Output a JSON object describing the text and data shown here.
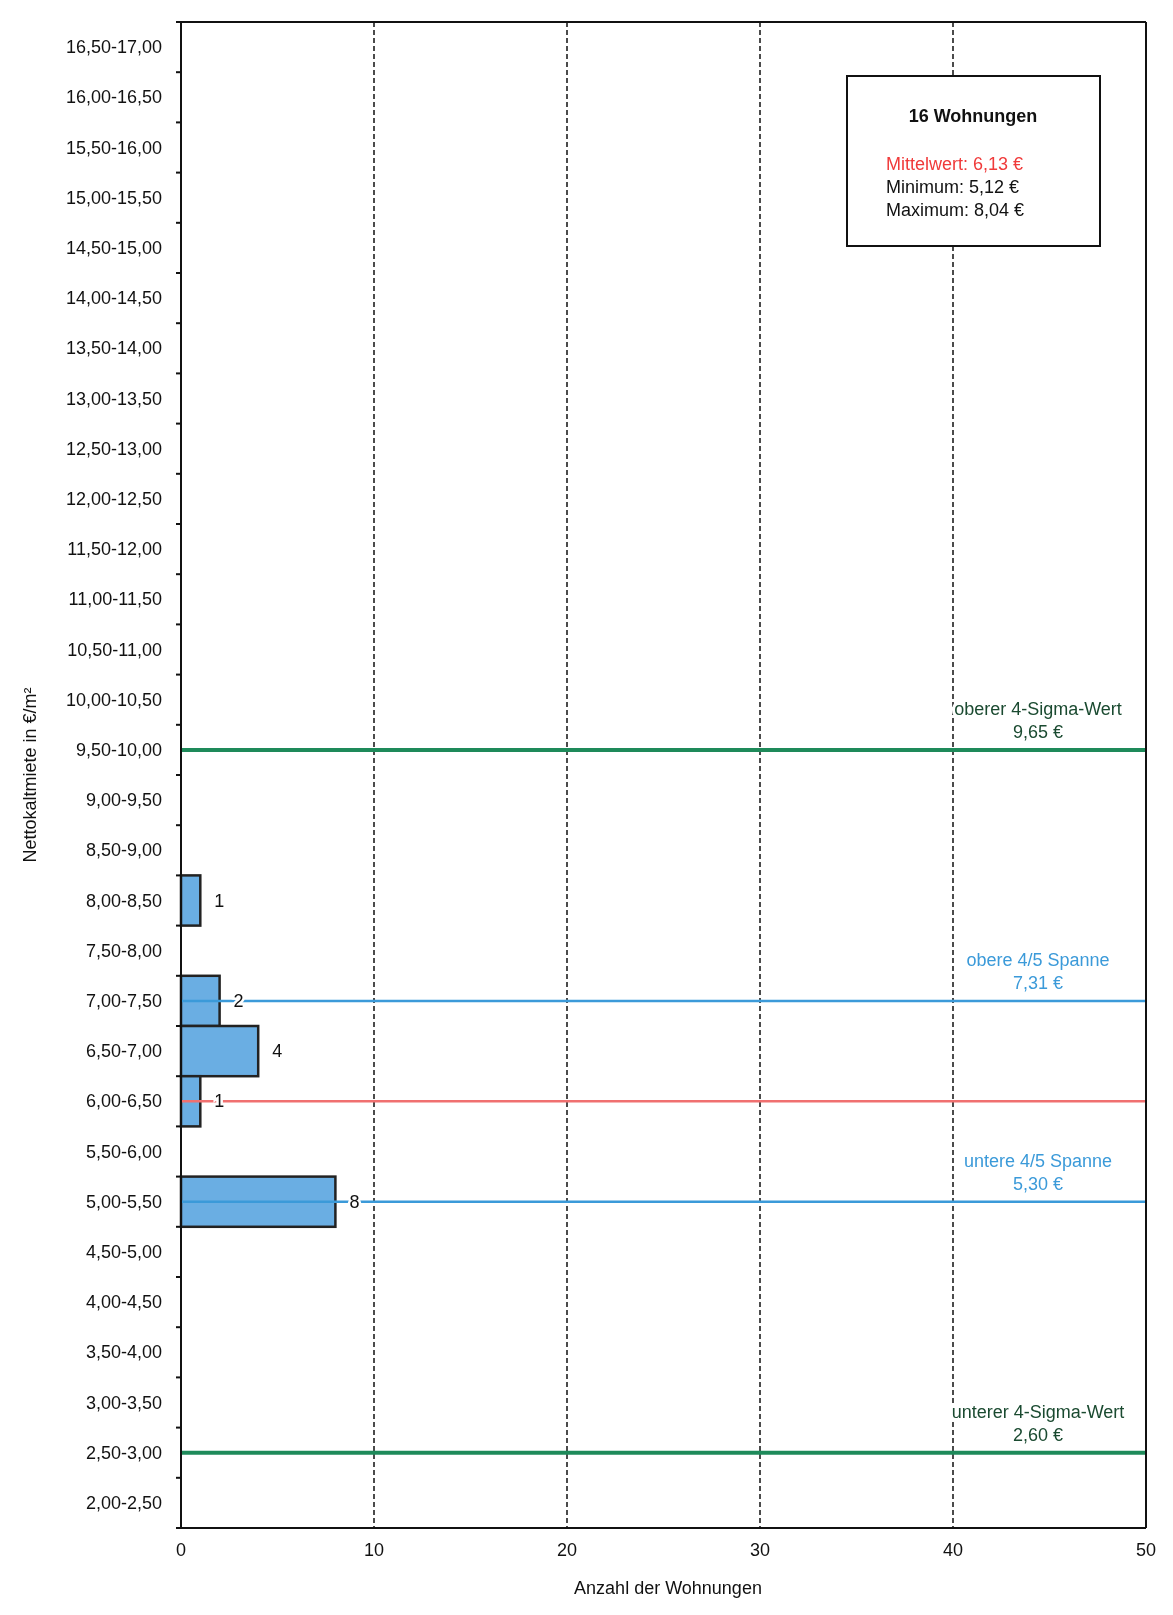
{
  "chart_data": {
    "type": "bar",
    "orientation": "horizontal",
    "xlabel": "Anzahl der Wohnungen",
    "ylabel": "Nettokaltmiete in €/m²",
    "categories": [
      "16,50-17,00",
      "16,00-16,50",
      "15,50-16,00",
      "15,00-15,50",
      "14,50-15,00",
      "14,00-14,50",
      "13,50-14,00",
      "13,00-13,50",
      "12,50-13,00",
      "12,00-12,50",
      "11,50-12,00",
      "11,00-11,50",
      "10,50-11,00",
      "10,00-10,50",
      "9,50-10,00",
      "9,00-9,50",
      "8,50-9,00",
      "8,00-8,50",
      "7,50-8,00",
      "7,00-7,50",
      "6,50-7,00",
      "6,00-6,50",
      "5,50-6,00",
      "5,00-5,50",
      "4,50-5,00",
      "4,00-4,50",
      "3,50-4,00",
      "3,00-3,50",
      "2,50-3,00",
      "2,00-2,50"
    ],
    "values": [
      0,
      0,
      0,
      0,
      0,
      0,
      0,
      0,
      0,
      0,
      0,
      0,
      0,
      0,
      0,
      0,
      0,
      1,
      0,
      2,
      4,
      1,
      0,
      8,
      0,
      0,
      0,
      0,
      0,
      0
    ],
    "value_labels": [
      null,
      null,
      null,
      null,
      null,
      null,
      null,
      null,
      null,
      null,
      null,
      null,
      null,
      null,
      null,
      null,
      null,
      "1",
      null,
      "2",
      "4",
      "1",
      null,
      "8",
      null,
      null,
      null,
      null,
      null,
      null
    ],
    "color": "#6aaee3",
    "xlim": [
      0,
      50
    ],
    "xticks": [
      0,
      10,
      20,
      30,
      40,
      50
    ],
    "grid": "x",
    "line_style": "dashed",
    "ref_lines": [
      {
        "axis": "y",
        "value": "9,50-10,00",
        "label": "oberer 4-Sigma-Wert\n9,65 €",
        "color": "#1e8a5a"
      },
      {
        "axis": "y",
        "value": "7,00-7,50",
        "label": "obere 4/5 Spanne\n7,31 €",
        "color": "#3b9ad9"
      },
      {
        "axis": "y",
        "value": "6,00-6,50",
        "label": null,
        "color": "#f07070"
      },
      {
        "axis": "y",
        "value": "5,00-5,50",
        "label": "untere 4/5 Spanne\n5,30 €",
        "color": "#3b9ad9"
      },
      {
        "axis": "y",
        "value": "2,50-3,00",
        "label": "unterer 4-Sigma-Wert\n2,60 €",
        "color": "#1e8a5a"
      }
    ],
    "annotations": [
      "16 Wohnungen",
      "Mittelwert: 6,13 €",
      "Minimum: 5,12 €",
      "Maximum: 8,04 €"
    ]
  }
}
